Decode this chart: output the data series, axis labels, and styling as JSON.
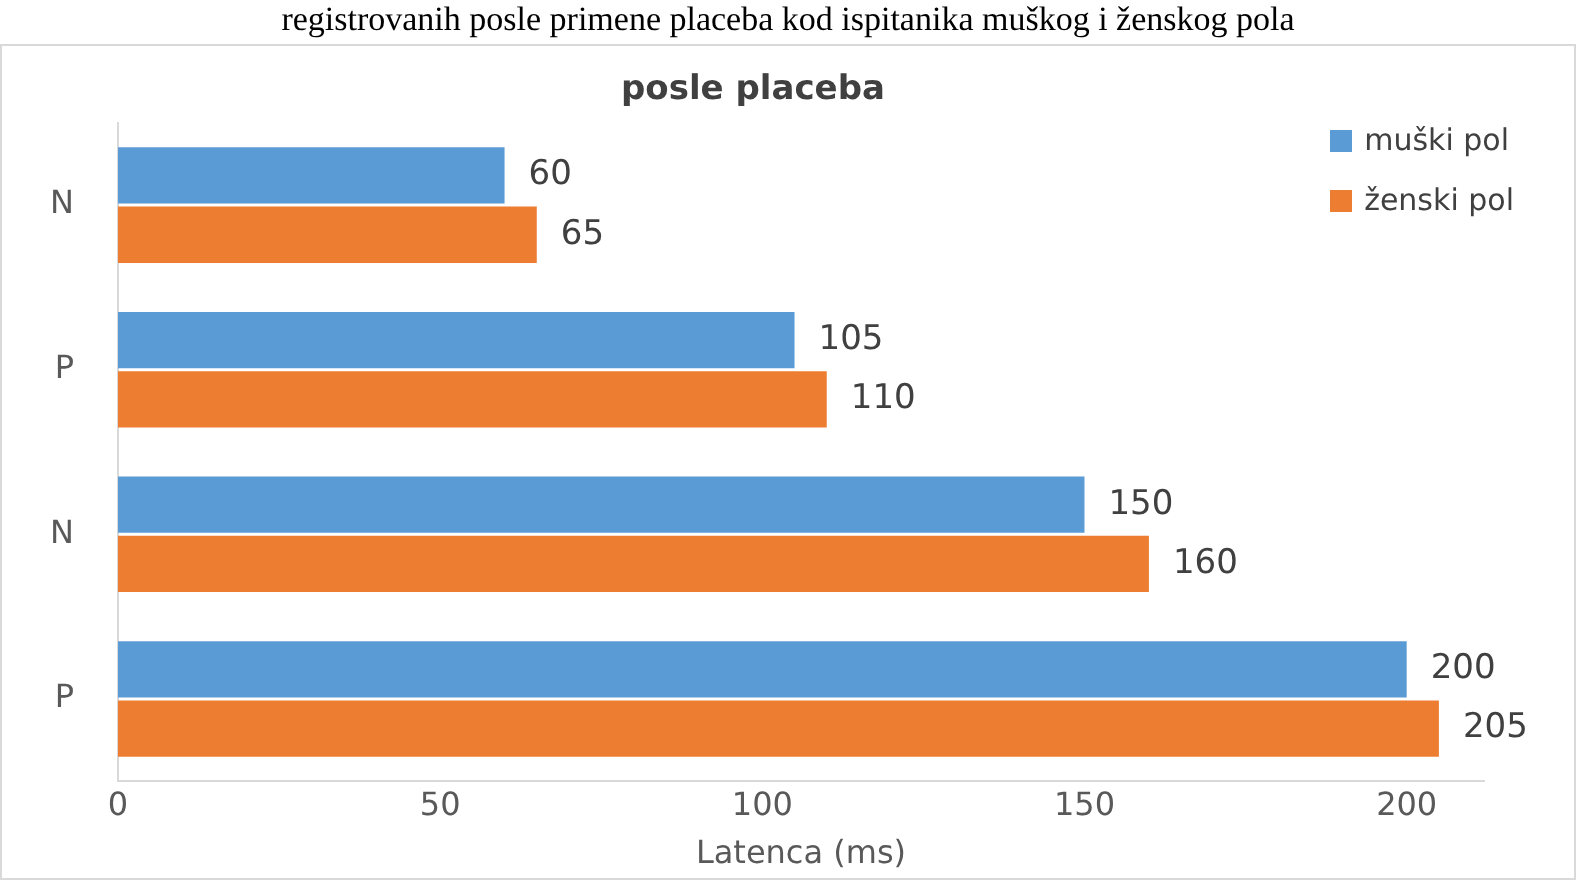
{
  "chart_data": {
    "type": "bar",
    "orientation": "horizontal",
    "title": "posle placeba",
    "xlabel": "Latenca (ms)",
    "categories": [
      "N",
      "P",
      "N",
      "P"
    ],
    "series": [
      {
        "name": "muški pol",
        "color": "#5b9bd5",
        "values": [
          60,
          105,
          150,
          200
        ]
      },
      {
        "name": "ženski pol",
        "color": "#ed7d31",
        "values": [
          65,
          110,
          160,
          205
        ]
      }
    ],
    "xlim": [
      0,
      212
    ],
    "xticks": [
      0,
      50,
      100,
      150,
      200
    ],
    "grid": false,
    "legend": "top right",
    "data_labels": true,
    "annotations": [
      "registrovanih posle primene placeba kod ispitanika muškog i ženskog pola"
    ]
  }
}
